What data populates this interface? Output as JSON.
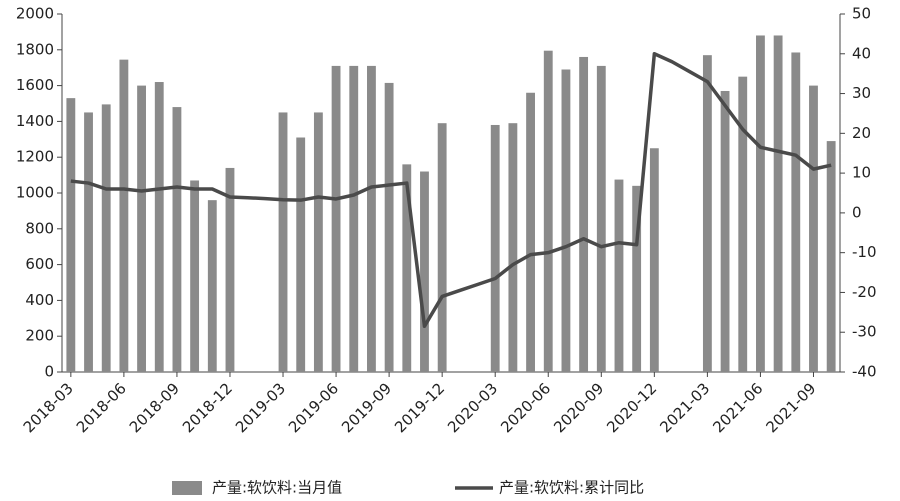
{
  "chart_data": {
    "type": "bar-line",
    "categories": [
      "2018-03",
      null,
      null,
      "2018-06",
      null,
      null,
      "2018-09",
      null,
      null,
      "2018-12",
      null,
      null,
      "2019-03",
      null,
      null,
      "2019-06",
      null,
      null,
      "2019-09",
      null,
      null,
      "2019-12",
      null,
      null,
      "2020-03",
      null,
      null,
      "2020-06",
      null,
      null,
      "2020-09",
      null,
      null,
      "2020-12",
      null,
      null,
      "2021-03",
      null,
      null,
      "2021-06",
      null,
      null,
      "2021-09",
      null
    ],
    "series": [
      {
        "name": "产量:软饮料:当月值",
        "type": "bar",
        "color": "#8a8a8a",
        "axis": "y",
        "values": [
          1530,
          1450,
          1495,
          1745,
          1600,
          1620,
          1480,
          1070,
          960,
          1140,
          null,
          null,
          1450,
          1310,
          1450,
          1710,
          1710,
          1710,
          1615,
          1160,
          1120,
          1390,
          null,
          null,
          1380,
          1390,
          1560,
          1795,
          1690,
          1760,
          1710,
          1075,
          1040,
          1250,
          null,
          null,
          1770,
          1570,
          1650,
          1880,
          1880,
          1785,
          1600,
          1290
        ]
      },
      {
        "name": "产量:软饮料:累计同比",
        "type": "line",
        "color": "#4a4a4a",
        "axis": "y2",
        "values": [
          8,
          7.5,
          6,
          6,
          5.5,
          6,
          6.5,
          6,
          6,
          4,
          3.8,
          3.6,
          3.3,
          3.2,
          4,
          3.5,
          4.5,
          6.5,
          7,
          7.5,
          -28.5,
          -21,
          -19.5,
          -18,
          -16.5,
          -13,
          -10.5,
          -10,
          -8.5,
          -6.5,
          -8.5,
          -7.5,
          -8,
          40,
          38,
          35.5,
          33,
          27,
          21,
          16.5,
          15.5,
          14.5,
          11,
          12
        ]
      }
    ],
    "ylim": [
      0,
      2000
    ],
    "yticks": [
      0,
      200,
      400,
      600,
      800,
      1000,
      1200,
      1400,
      1600,
      1800,
      2000
    ],
    "y2lim": [
      -40,
      50
    ],
    "y2ticks": [
      -40,
      -30,
      -20,
      -10,
      0,
      10,
      20,
      30,
      40,
      50
    ],
    "legend": "bottom"
  }
}
